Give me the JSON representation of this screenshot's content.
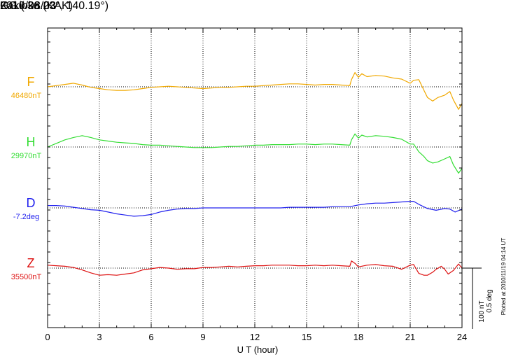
{
  "header": {
    "station": "Kakioka (KAK)",
    "coords": "GG ( 36.23°, 140.19°)",
    "date": "2010/08/03"
  },
  "plot_note": "Plotted at 2010/11/19 04:14 UT",
  "scale_label_1": "100 nT",
  "scale_label_2": "0.5 deg",
  "chart_data": {
    "type": "line",
    "title": "",
    "xlabel": "U T (hour)",
    "xlim": [
      0,
      24
    ],
    "xticks": [
      0,
      3,
      6,
      9,
      12,
      15,
      18,
      21,
      24
    ],
    "grid": true,
    "series": [
      {
        "name": "F",
        "baseline_label": "46480nT",
        "color": "#f0a800",
        "values": [
          [
            0,
            0
          ],
          [
            0.5,
            2
          ],
          [
            1,
            4
          ],
          [
            1.5,
            6
          ],
          [
            2,
            3
          ],
          [
            2.5,
            -1
          ],
          [
            3,
            -3
          ],
          [
            3.5,
            -5
          ],
          [
            4,
            -6
          ],
          [
            4.5,
            -6
          ],
          [
            5,
            -5
          ],
          [
            5.5,
            -3
          ],
          [
            6,
            -1
          ],
          [
            6.5,
            0
          ],
          [
            7,
            1
          ],
          [
            7.5,
            0
          ],
          [
            8,
            -1
          ],
          [
            8.5,
            -2
          ],
          [
            9,
            -3
          ],
          [
            9.5,
            -2
          ],
          [
            10,
            -1
          ],
          [
            10.5,
            -1
          ],
          [
            11,
            0
          ],
          [
            11.5,
            1
          ],
          [
            12,
            1
          ],
          [
            12.5,
            2
          ],
          [
            13,
            3
          ],
          [
            13.5,
            4
          ],
          [
            14,
            5
          ],
          [
            14.5,
            5
          ],
          [
            15,
            4
          ],
          [
            15.5,
            3
          ],
          [
            16,
            4
          ],
          [
            16.5,
            4
          ],
          [
            17,
            3
          ],
          [
            17.5,
            2
          ],
          [
            17.6,
            12
          ],
          [
            17.8,
            24
          ],
          [
            18,
            16
          ],
          [
            18.2,
            22
          ],
          [
            18.5,
            17
          ],
          [
            19,
            19
          ],
          [
            19.5,
            18
          ],
          [
            20,
            15
          ],
          [
            20.5,
            13
          ],
          [
            21,
            6
          ],
          [
            21.2,
            11
          ],
          [
            21.5,
            12
          ],
          [
            21.8,
            -6
          ],
          [
            22,
            -18
          ],
          [
            22.3,
            -24
          ],
          [
            22.6,
            -18
          ],
          [
            23,
            -14
          ],
          [
            23.3,
            -8
          ],
          [
            23.5,
            -22
          ],
          [
            23.8,
            -38
          ],
          [
            24,
            -28
          ]
        ]
      },
      {
        "name": "H",
        "baseline_label": "29970nT",
        "color": "#33dd33",
        "values": [
          [
            0,
            0
          ],
          [
            0.5,
            6
          ],
          [
            1,
            12
          ],
          [
            1.5,
            16
          ],
          [
            2,
            19
          ],
          [
            2.5,
            16
          ],
          [
            3,
            12
          ],
          [
            3.5,
            10
          ],
          [
            4,
            8
          ],
          [
            4.5,
            7
          ],
          [
            5,
            6
          ],
          [
            5.5,
            4
          ],
          [
            6,
            3
          ],
          [
            6.5,
            3
          ],
          [
            7,
            2
          ],
          [
            7.5,
            1
          ],
          [
            8,
            0
          ],
          [
            8.5,
            -1
          ],
          [
            9,
            -1
          ],
          [
            9.5,
            -1
          ],
          [
            10,
            0
          ],
          [
            10.5,
            1
          ],
          [
            11,
            1
          ],
          [
            11.5,
            2
          ],
          [
            12,
            3
          ],
          [
            12.5,
            3
          ],
          [
            13,
            4
          ],
          [
            13.5,
            4
          ],
          [
            14,
            4
          ],
          [
            14.5,
            5
          ],
          [
            15,
            5
          ],
          [
            15.5,
            4
          ],
          [
            16,
            5
          ],
          [
            16.5,
            5
          ],
          [
            17,
            4
          ],
          [
            17.5,
            3
          ],
          [
            17.6,
            12
          ],
          [
            17.8,
            22
          ],
          [
            18,
            15
          ],
          [
            18.2,
            20
          ],
          [
            18.5,
            17
          ],
          [
            19,
            19
          ],
          [
            19.5,
            18
          ],
          [
            20,
            16
          ],
          [
            20.5,
            13
          ],
          [
            21,
            5
          ],
          [
            21.2,
            5
          ],
          [
            21.5,
            -8
          ],
          [
            21.8,
            -16
          ],
          [
            22,
            -23
          ],
          [
            22.3,
            -27
          ],
          [
            22.6,
            -25
          ],
          [
            23,
            -20
          ],
          [
            23.3,
            -16
          ],
          [
            23.5,
            -30
          ],
          [
            23.8,
            -44
          ],
          [
            24,
            -36
          ]
        ]
      },
      {
        "name": "D",
        "baseline_label": "-7.2deg",
        "color": "#2222ee",
        "values": [
          [
            0,
            4
          ],
          [
            0.5,
            4
          ],
          [
            1,
            3
          ],
          [
            1.5,
            1
          ],
          [
            2,
            -1
          ],
          [
            2.5,
            -3
          ],
          [
            3,
            -4
          ],
          [
            3.5,
            -7
          ],
          [
            4,
            -10
          ],
          [
            4.5,
            -12
          ],
          [
            5,
            -14
          ],
          [
            5.5,
            -13
          ],
          [
            6,
            -11
          ],
          [
            6.5,
            -7
          ],
          [
            7,
            -4
          ],
          [
            7.5,
            -2
          ],
          [
            8,
            -1
          ],
          [
            8.5,
            -1
          ],
          [
            9,
            0
          ],
          [
            9.5,
            0
          ],
          [
            10,
            0
          ],
          [
            10.5,
            0
          ],
          [
            11,
            0
          ],
          [
            11.5,
            0
          ],
          [
            12,
            0
          ],
          [
            12.5,
            0
          ],
          [
            13,
            0
          ],
          [
            13.5,
            0
          ],
          [
            14,
            1
          ],
          [
            14.5,
            1
          ],
          [
            15,
            1
          ],
          [
            15.5,
            1
          ],
          [
            16,
            1
          ],
          [
            16.5,
            2
          ],
          [
            17,
            2
          ],
          [
            17.5,
            2
          ],
          [
            18,
            5
          ],
          [
            18.5,
            7
          ],
          [
            19,
            8
          ],
          [
            19.5,
            8
          ],
          [
            20,
            9
          ],
          [
            20.5,
            10
          ],
          [
            21,
            11
          ],
          [
            21.2,
            11
          ],
          [
            21.5,
            6
          ],
          [
            22,
            -1
          ],
          [
            22.5,
            -4
          ],
          [
            23,
            -1
          ],
          [
            23.3,
            -2
          ],
          [
            23.6,
            -7
          ],
          [
            24,
            -2
          ]
        ]
      },
      {
        "name": "Z",
        "baseline_label": "35500nT",
        "color": "#dd1111",
        "values": [
          [
            0,
            5
          ],
          [
            0.5,
            4
          ],
          [
            1,
            3
          ],
          [
            1.5,
            1
          ],
          [
            2,
            -3
          ],
          [
            2.5,
            -8
          ],
          [
            3,
            -12
          ],
          [
            3.5,
            -11
          ],
          [
            4,
            -12
          ],
          [
            4.5,
            -10
          ],
          [
            5,
            -8
          ],
          [
            5.5,
            -3
          ],
          [
            6,
            -1
          ],
          [
            6.5,
            1
          ],
          [
            7,
            0
          ],
          [
            7.5,
            -2
          ],
          [
            8,
            -1
          ],
          [
            8.5,
            -1
          ],
          [
            9,
            1
          ],
          [
            9.5,
            1
          ],
          [
            10,
            2
          ],
          [
            10.5,
            3
          ],
          [
            11,
            2
          ],
          [
            11.5,
            3
          ],
          [
            12,
            4
          ],
          [
            12.5,
            4
          ],
          [
            13,
            5
          ],
          [
            13.5,
            5
          ],
          [
            14,
            5
          ],
          [
            14.5,
            4
          ],
          [
            15,
            4
          ],
          [
            15.5,
            5
          ],
          [
            16,
            4
          ],
          [
            16.5,
            5
          ],
          [
            17,
            4
          ],
          [
            17.5,
            3
          ],
          [
            17.6,
            12
          ],
          [
            17.8,
            8
          ],
          [
            18,
            2
          ],
          [
            18.5,
            5
          ],
          [
            19,
            6
          ],
          [
            19.5,
            4
          ],
          [
            20,
            3
          ],
          [
            20.5,
            -2
          ],
          [
            21,
            5
          ],
          [
            21.2,
            6
          ],
          [
            21.5,
            -9
          ],
          [
            21.8,
            -12
          ],
          [
            22,
            -12
          ],
          [
            22.3,
            -7
          ],
          [
            22.5,
            -2
          ],
          [
            22.8,
            3
          ],
          [
            23,
            -2
          ],
          [
            23.2,
            -10
          ],
          [
            23.5,
            -4
          ],
          [
            23.8,
            7
          ],
          [
            24,
            0
          ]
        ]
      }
    ]
  }
}
